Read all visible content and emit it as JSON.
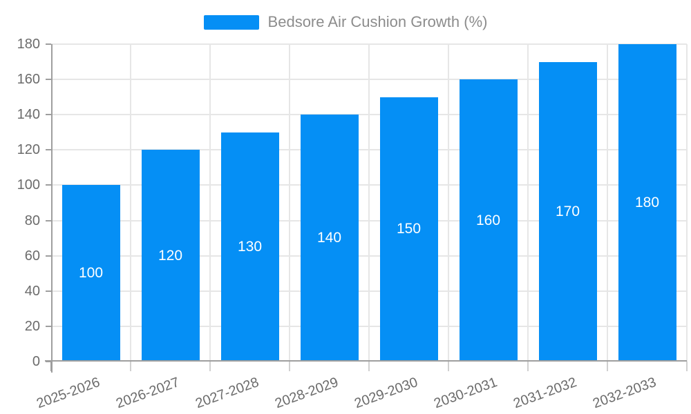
{
  "legend": {
    "label": "Bedsore Air Cushion Growth (%)"
  },
  "chart_data": {
    "type": "bar",
    "title": "Bedsore Air Cushion Growth (%)",
    "series_name": "Bedsore Air Cushion Growth (%)",
    "categories": [
      "2025-2026",
      "2026-2027",
      "2027-2028",
      "2028-2029",
      "2029-2030",
      "2030-2031",
      "2031-2032",
      "2032-2033"
    ],
    "values": [
      100,
      120,
      130,
      140,
      150,
      160,
      170,
      180
    ],
    "xlabel": "",
    "ylabel": "",
    "ylim": [
      0,
      180
    ],
    "ytick_step": 20,
    "yticks": [
      0,
      20,
      40,
      60,
      80,
      100,
      120,
      140,
      160,
      180
    ],
    "grid": true,
    "legend_position": "top-center",
    "value_labels": "white numbers centered inside each bar",
    "x_label_rotation_deg": -20,
    "colors": {
      "bar": "#058ff5",
      "value_label": "#ffffff",
      "grid": "#e6e6e6",
      "axis": "#9e9e9e",
      "tick_label": "#6b6b6b",
      "legend_text": "#8c8c8c",
      "background": "#ffffff"
    }
  }
}
